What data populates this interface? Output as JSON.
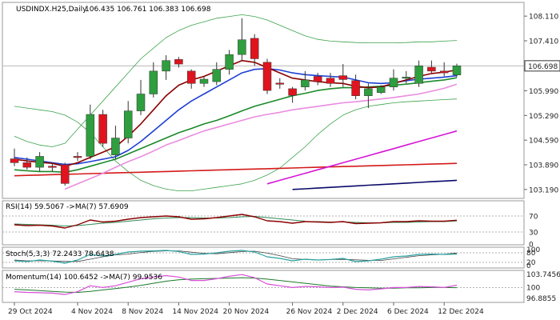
{
  "header": {
    "symbol": "USDINDX.H25,Daily",
    "ohlc": "106.435 106.761 106.383 106.698"
  },
  "price_axis": {
    "ticks": [
      "108.110",
      "107.410",
      "106.698",
      "105.990",
      "105.290",
      "104.590",
      "103.890",
      "103.190"
    ],
    "current_price": "106.698",
    "current_color": "#333333"
  },
  "date_axis": {
    "labels": [
      "29 Oct 2024",
      "4 Nov 2024",
      "8 Nov 2024",
      "14 Nov 2024",
      "20 Nov 2024",
      "26 Nov 2024",
      "2 Dec 2024",
      "6 Dec 2024",
      "12 Dec 2024"
    ],
    "label_index": [
      0,
      5,
      9,
      13,
      17,
      22,
      26,
      30,
      34
    ]
  },
  "rsi": {
    "label": "RSI(14) 59.5067   ->MA(7) 57.6909",
    "ticks": [
      "70",
      "30",
      "0"
    ]
  },
  "stoch": {
    "label": "Stoch(5,3,3) 72.2433 78.6438",
    "ticks": [
      "100",
      "80",
      "20",
      "0"
    ]
  },
  "momentum": {
    "label": "Momentum(14) 100.6452   ->MA(7) 99.9536",
    "ticks": [
      "103.7456",
      "100",
      "96.8855"
    ]
  },
  "colors": {
    "bull": "#2e9e3e",
    "bear": "#e0141e",
    "ma_fast": "#8b0000",
    "ma_mid": "#1f3fd6",
    "ma_slow": "#1a8a2a",
    "ma_pink": "#ea8ce0",
    "ma_magenta": "#d616d6",
    "ma_red": "#d41a1a",
    "ma_navy": "#0a0a6a",
    "bollinger": "#3ba24a",
    "rsi_line": "#8b0000",
    "rsi_ma": "#2e8b57",
    "stoch_k": "#2aa1a1",
    "stoch_d": "#444444",
    "mom_line": "#d64fd6",
    "mom_ma": "#1a7a2a"
  },
  "chart_data": {
    "type": "candlestick",
    "title": "USDINDX.H25,Daily",
    "ylim": [
      103.05,
      108.25
    ],
    "candles": [
      {
        "o": 104.06,
        "h": 104.35,
        "l": 103.85,
        "c": 103.95
      },
      {
        "o": 103.95,
        "h": 104.1,
        "l": 103.75,
        "c": 103.82
      },
      {
        "o": 103.82,
        "h": 104.25,
        "l": 103.7,
        "c": 104.13
      },
      {
        "o": 103.85,
        "h": 103.95,
        "l": 103.7,
        "c": 103.82
      },
      {
        "o": 103.89,
        "h": 103.95,
        "l": 103.3,
        "c": 103.36
      },
      {
        "o": 104.13,
        "h": 104.25,
        "l": 104.0,
        "c": 104.1
      },
      {
        "o": 104.13,
        "h": 105.6,
        "l": 104.05,
        "c": 105.32
      },
      {
        "o": 105.32,
        "h": 105.45,
        "l": 104.4,
        "c": 104.5
      },
      {
        "o": 104.17,
        "h": 105.0,
        "l": 104.05,
        "c": 104.65
      },
      {
        "o": 104.65,
        "h": 105.7,
        "l": 104.5,
        "c": 105.42
      },
      {
        "o": 105.42,
        "h": 106.3,
        "l": 105.3,
        "c": 105.9
      },
      {
        "o": 105.9,
        "h": 106.8,
        "l": 105.8,
        "c": 106.55
      },
      {
        "o": 106.55,
        "h": 107.0,
        "l": 106.3,
        "c": 106.85
      },
      {
        "o": 106.88,
        "h": 106.95,
        "l": 106.65,
        "c": 106.75
      },
      {
        "o": 106.55,
        "h": 106.6,
        "l": 106.05,
        "c": 106.2
      },
      {
        "o": 106.2,
        "h": 106.4,
        "l": 106.1,
        "c": 106.32
      },
      {
        "o": 106.25,
        "h": 106.8,
        "l": 106.15,
        "c": 106.6
      },
      {
        "o": 106.6,
        "h": 107.15,
        "l": 106.45,
        "c": 107.02
      },
      {
        "o": 107.02,
        "h": 108.05,
        "l": 106.85,
        "c": 107.44
      },
      {
        "o": 107.48,
        "h": 107.6,
        "l": 106.7,
        "c": 106.9
      },
      {
        "o": 106.8,
        "h": 106.9,
        "l": 105.9,
        "c": 106.0
      },
      {
        "o": 106.21,
        "h": 106.35,
        "l": 106.05,
        "c": 106.18
      },
      {
        "o": 106.05,
        "h": 106.1,
        "l": 105.65,
        "c": 105.86
      },
      {
        "o": 106.1,
        "h": 106.55,
        "l": 106.0,
        "c": 106.3
      },
      {
        "o": 106.4,
        "h": 106.5,
        "l": 106.15,
        "c": 106.25
      },
      {
        "o": 106.35,
        "h": 106.5,
        "l": 106.1,
        "c": 106.2
      },
      {
        "o": 106.42,
        "h": 106.75,
        "l": 106.1,
        "c": 106.31
      },
      {
        "o": 106.28,
        "h": 106.45,
        "l": 105.75,
        "c": 105.85
      },
      {
        "o": 105.85,
        "h": 106.2,
        "l": 105.5,
        "c": 106.05
      },
      {
        "o": 105.94,
        "h": 106.15,
        "l": 105.9,
        "c": 106.1
      },
      {
        "o": 106.1,
        "h": 106.6,
        "l": 106.0,
        "c": 106.35
      },
      {
        "o": 106.35,
        "h": 106.55,
        "l": 106.2,
        "c": 106.38
      },
      {
        "o": 106.2,
        "h": 106.85,
        "l": 106.1,
        "c": 106.7
      },
      {
        "o": 106.66,
        "h": 106.85,
        "l": 106.5,
        "c": 106.55
      },
      {
        "o": 106.55,
        "h": 106.8,
        "l": 106.4,
        "c": 106.5
      },
      {
        "o": 106.44,
        "h": 106.76,
        "l": 106.38,
        "c": 106.7
      }
    ],
    "ma_fast": [
      104.05,
      104.0,
      103.96,
      103.93,
      103.85,
      103.95,
      104.1,
      104.25,
      104.4,
      104.7,
      105.05,
      105.45,
      105.85,
      106.15,
      106.3,
      106.4,
      106.55,
      106.7,
      106.85,
      106.8,
      106.65,
      106.5,
      106.35,
      106.3,
      106.25,
      106.22,
      106.2,
      106.12,
      106.08,
      106.1,
      106.2,
      106.3,
      106.4,
      106.48,
      106.52,
      106.58
    ],
    "ma_mid": [
      104.1,
      104.05,
      104.0,
      103.95,
      103.9,
      103.92,
      103.98,
      104.05,
      104.12,
      104.3,
      104.55,
      104.85,
      105.15,
      105.45,
      105.7,
      105.9,
      106.1,
      106.3,
      106.5,
      106.6,
      106.62,
      106.58,
      106.5,
      106.45,
      106.42,
      106.4,
      106.38,
      106.3,
      106.22,
      106.2,
      106.22,
      106.28,
      106.32,
      106.35,
      106.38,
      106.42
    ],
    "ma_slow": [
      103.75,
      103.72,
      103.7,
      103.7,
      103.68,
      103.75,
      103.85,
      103.95,
      104.05,
      104.2,
      104.35,
      104.5,
      104.65,
      104.8,
      104.92,
      105.05,
      105.15,
      105.28,
      105.42,
      105.55,
      105.65,
      105.75,
      105.85,
      105.92,
      106.0,
      106.05,
      106.08,
      106.08,
      106.1,
      106.12,
      106.15,
      106.18,
      106.22,
      106.26,
      106.3,
      106.36
    ],
    "ma_pink": [
      null,
      null,
      null,
      null,
      103.2,
      103.35,
      103.5,
      103.65,
      103.82,
      103.98,
      104.12,
      104.28,
      104.45,
      104.58,
      104.72,
      104.85,
      104.95,
      105.05,
      105.15,
      105.25,
      105.32,
      105.38,
      105.45,
      105.5,
      105.55,
      105.6,
      105.65,
      105.68,
      105.72,
      105.76,
      105.8,
      105.85,
      105.9,
      105.98,
      106.06,
      106.18
    ],
    "ma_magenta": [
      null,
      null,
      null,
      null,
      null,
      null,
      null,
      null,
      null,
      null,
      null,
      null,
      null,
      null,
      null,
      null,
      null,
      null,
      null,
      null,
      103.35,
      103.45,
      103.55,
      103.65,
      103.75,
      103.85,
      103.95,
      104.05,
      104.15,
      104.25,
      104.35,
      104.45,
      104.55,
      104.65,
      104.75,
      104.85
    ],
    "ma_red": [
      103.58,
      103.59,
      103.6,
      103.61,
      103.62,
      103.63,
      103.64,
      103.65,
      103.66,
      103.67,
      103.68,
      103.69,
      103.7,
      103.71,
      103.72,
      103.73,
      103.74,
      103.75,
      103.76,
      103.77,
      103.78,
      103.79,
      103.8,
      103.81,
      103.82,
      103.83,
      103.84,
      103.85,
      103.86,
      103.87,
      103.88,
      103.89,
      103.9,
      103.91,
      103.92,
      103.93
    ],
    "ma_navy": [
      null,
      null,
      null,
      null,
      null,
      null,
      null,
      null,
      null,
      null,
      null,
      null,
      null,
      null,
      null,
      null,
      null,
      null,
      null,
      null,
      null,
      null,
      103.19,
      103.21,
      103.23,
      103.25,
      103.27,
      103.29,
      103.31,
      103.33,
      103.35,
      103.37,
      103.39,
      103.41,
      103.43,
      103.45
    ],
    "bb_upper": [
      104.7,
      104.55,
      104.45,
      104.4,
      104.5,
      104.9,
      105.3,
      105.7,
      106.1,
      106.5,
      106.9,
      107.2,
      107.5,
      107.7,
      107.85,
      107.95,
      108.05,
      108.1,
      108.15,
      108.1,
      108.0,
      107.85,
      107.7,
      107.55,
      107.45,
      107.4,
      107.38,
      107.36,
      107.35,
      107.35,
      107.35,
      107.36,
      107.38,
      107.38,
      107.4,
      107.42
    ],
    "bb_lower": [
      105.55,
      105.5,
      105.45,
      105.4,
      105.3,
      105.1,
      104.8,
      104.4,
      104.0,
      103.7,
      103.45,
      103.3,
      103.2,
      103.15,
      103.15,
      103.2,
      103.25,
      103.3,
      103.35,
      103.45,
      103.6,
      103.8,
      104.1,
      104.4,
      104.75,
      105.05,
      105.3,
      105.45,
      105.55,
      105.6,
      105.65,
      105.68,
      105.7,
      105.72,
      105.74,
      105.76
    ],
    "rsi": [
      48,
      46,
      47,
      45,
      40,
      48,
      60,
      55,
      57,
      62,
      66,
      68,
      70,
      68,
      62,
      63,
      66,
      70,
      74,
      68,
      58,
      56,
      52,
      56,
      55,
      54,
      56,
      51,
      52,
      53,
      56,
      56,
      58,
      57,
      57,
      59.5
    ],
    "rsi_ma": [
      50,
      49,
      48,
      47,
      45,
      46,
      49,
      52,
      54,
      57,
      60,
      63,
      65,
      66,
      66,
      65,
      65,
      66,
      68,
      69,
      66,
      63,
      60,
      57,
      56,
      55,
      55,
      54,
      53,
      53,
      54,
      54,
      55,
      56,
      56,
      57.7
    ],
    "stoch_k": [
      30,
      25,
      35,
      28,
      15,
      35,
      70,
      60,
      70,
      85,
      90,
      92,
      95,
      88,
      70,
      72,
      80,
      90,
      95,
      85,
      55,
      45,
      30,
      40,
      35,
      38,
      45,
      25,
      30,
      40,
      55,
      60,
      70,
      72,
      70,
      72.2
    ],
    "stoch_d": [
      35,
      30,
      30,
      29,
      26,
      26,
      40,
      55,
      67,
      72,
      82,
      89,
      92,
      92,
      84,
      77,
      74,
      81,
      88,
      90,
      78,
      62,
      43,
      38,
      35,
      38,
      39,
      36,
      33,
      32,
      42,
      52,
      62,
      67,
      71,
      78.6
    ],
    "momentum": [
      98.8,
      98.6,
      98.5,
      98.4,
      98.0,
      98.8,
      100.5,
      100.0,
      100.5,
      101.5,
      102.5,
      103.0,
      103.4,
      103.0,
      102.0,
      102.0,
      102.5,
      103.2,
      103.7,
      102.8,
      101.0,
      100.5,
      100.0,
      100.3,
      100.2,
      100.0,
      100.1,
      99.5,
      99.3,
      99.6,
      100.0,
      100.0,
      100.3,
      100.2,
      100.0,
      100.65
    ],
    "momentum_ma": [
      99.5,
      99.3,
      99.1,
      98.9,
      98.7,
      98.6,
      98.9,
      99.3,
      99.7,
      100.1,
      100.6,
      101.2,
      101.8,
      102.2,
      102.4,
      102.5,
      102.6,
      102.7,
      102.8,
      102.7,
      102.4,
      102.0,
      101.6,
      101.2,
      100.8,
      100.4,
      100.2,
      100.0,
      99.9,
      99.8,
      99.8,
      99.9,
      99.9,
      100.0,
      100.0,
      99.95
    ]
  }
}
